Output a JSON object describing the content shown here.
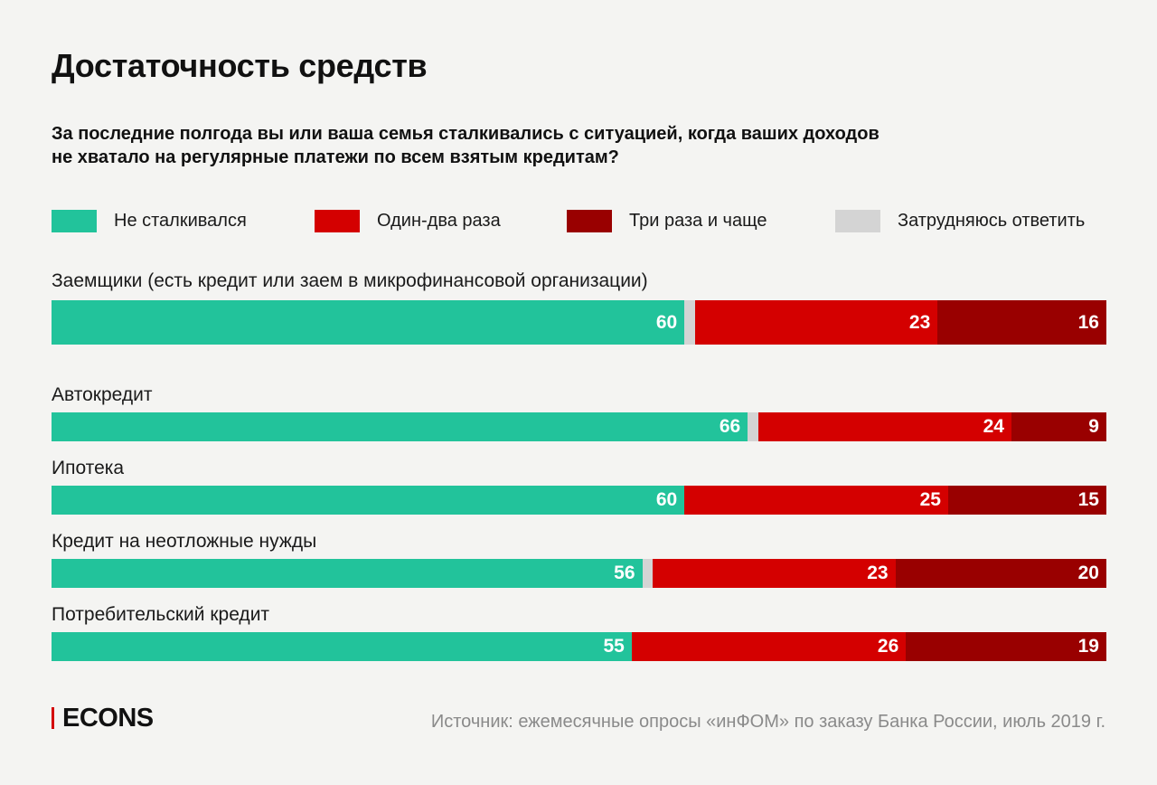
{
  "title": "Достаточность средств",
  "subtitle_lines": [
    "За последние полгода вы или ваша семья сталкивались с ситуацией, когда ваших доходов",
    "не хватало на регулярные платежи по всем взятым кредитам?"
  ],
  "legend": [
    {
      "label": "Не сталкивался",
      "color": "#22c39b"
    },
    {
      "label": "Один-два раза",
      "color": "#d40000"
    },
    {
      "label": "Три раза и чаще",
      "color": "#990000"
    },
    {
      "label": "Затрудняюсь ответить",
      "color": "#d4d4d4"
    }
  ],
  "chart_data": {
    "type": "bar",
    "orientation": "horizontal",
    "stacked": true,
    "unit": "%",
    "categories": [
      "Заемщики (есть кредит или заем в микрофинансовой организации)",
      "Автокредит",
      "Ипотека",
      "Кредит на неотложные нужды",
      "Потребительский кредит"
    ],
    "series": [
      {
        "name": "Не сталкивался",
        "values": [
          60,
          66,
          60,
          56,
          55
        ]
      },
      {
        "name": "Затрудняюсь ответить",
        "values": [
          1,
          1,
          0,
          1,
          0
        ]
      },
      {
        "name": "Один-два раза",
        "values": [
          23,
          24,
          25,
          23,
          26
        ]
      },
      {
        "name": "Три раза и чаще",
        "values": [
          16,
          9,
          15,
          20,
          19
        ]
      }
    ],
    "segment_order": [
      "Не сталкивался",
      "Затрудняюсь ответить",
      "Один-два раза",
      "Три раза и чаще"
    ],
    "legend_position": "top",
    "grid": false
  },
  "footer": {
    "logo": "ECONS",
    "source": "Источник: ежемесячные опросы «инФОМ» по заказу Банка России, июль 2019 г."
  }
}
